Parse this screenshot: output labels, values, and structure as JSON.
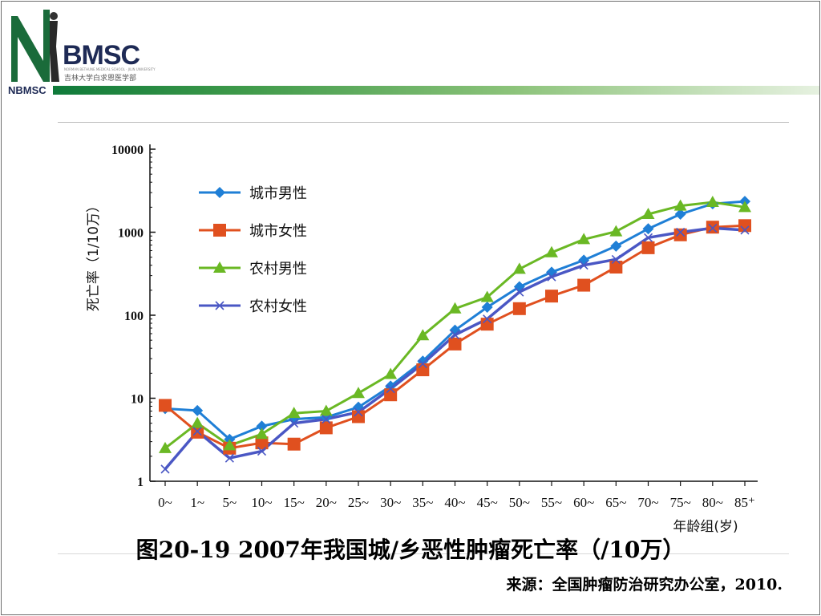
{
  "header": {
    "logo_text": "BMSC",
    "logo_sub": "吉林大学白求恩医学部",
    "logo_tiny": "NORMAN BETHUNE MEDICAL SCHOOL · JILIN UNIVERSITY",
    "footer_logo": "NBMSC"
  },
  "caption": "图20-19  2007年我国城/乡恶性肿瘤死亡率（/10万）",
  "source": "来源：全国肿瘤防治研究办公室，2010.",
  "chart_data": {
    "type": "line",
    "ylabel": "死亡率（1/10万）",
    "xlabel": "年龄组(岁)",
    "y_scale": "log",
    "ylim": [
      1,
      10000
    ],
    "grid": false,
    "legend_position": "top-left",
    "yticks": [
      "1",
      "10",
      "100",
      "1000",
      "10000"
    ],
    "categories": [
      "0~",
      "1~",
      "5~",
      "10~",
      "15~",
      "20~",
      "25~",
      "30~",
      "35~",
      "40~",
      "45~",
      "50~",
      "55~",
      "60~",
      "65~",
      "70~",
      "75~",
      "80~",
      "85⁺"
    ],
    "series": [
      {
        "name": "城市男性",
        "color": "#1f7fd6",
        "marker": "diamond",
        "values": [
          7.5,
          7.1,
          3.2,
          4.6,
          5.6,
          5.9,
          7.8,
          14,
          28,
          66,
          125,
          220,
          330,
          460,
          680,
          1100,
          1650,
          2200,
          2350
        ]
      },
      {
        "name": "城市女性",
        "color": "#e0501f",
        "marker": "square",
        "values": [
          8.2,
          3.9,
          2.5,
          2.9,
          2.8,
          4.4,
          6.0,
          11,
          22,
          45,
          78,
          120,
          170,
          230,
          380,
          650,
          930,
          1150,
          1200
        ]
      },
      {
        "name": "农村男性",
        "color": "#6ab824",
        "marker": "triangle",
        "values": [
          2.5,
          5.0,
          2.7,
          3.7,
          6.6,
          7.0,
          11.5,
          19.5,
          57,
          120,
          165,
          360,
          570,
          820,
          1020,
          1650,
          2080,
          2300,
          2000
        ]
      },
      {
        "name": "农村女性",
        "color": "#4a57c4",
        "marker": "x",
        "values": [
          1.4,
          4.0,
          1.9,
          2.3,
          5.0,
          5.6,
          6.8,
          13,
          26,
          58,
          90,
          190,
          290,
          400,
          470,
          860,
          1000,
          1120,
          1060
        ]
      }
    ]
  }
}
